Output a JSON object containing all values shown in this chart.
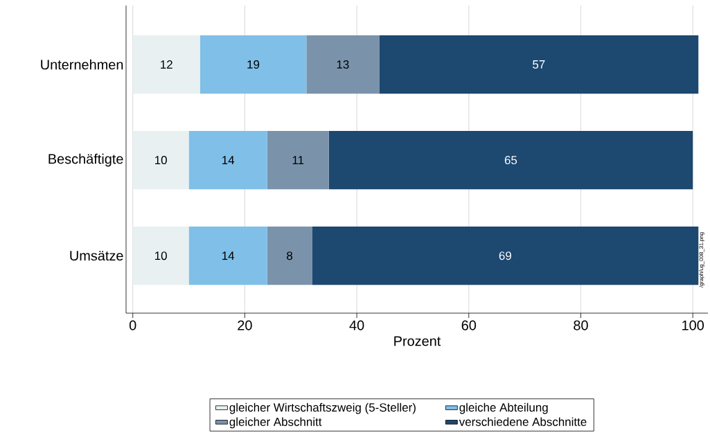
{
  "chart_data": {
    "type": "bar",
    "orientation": "horizontal",
    "stacked": true,
    "categories": [
      "Unternehmen",
      "Beschäftigte",
      "Umsätze"
    ],
    "series": [
      {
        "name": "gleicher Wirtschaftszweig (5-Steller)",
        "color": "#e8f0f2",
        "values": [
          12,
          10,
          10
        ]
      },
      {
        "name": "gleiche Abteilung",
        "color": "#80bfe8",
        "values": [
          19,
          14,
          14
        ]
      },
      {
        "name": "gleicher Abschnitt",
        "color": "#7a93ab",
        "values": [
          13,
          11,
          8
        ]
      },
      {
        "name": "verschiedene Abschnitte",
        "color": "#1d4870",
        "values": [
          57,
          65,
          69
        ]
      }
    ],
    "xlim": [
      -1.2,
      102.7
    ],
    "xticks": [
      0,
      20,
      40,
      60,
      80,
      100
    ],
    "xlabel": "Prozent",
    "data_labels": true,
    "grid": "x",
    "legend": "bottom",
    "annotations": [
      "/graph/ug_008_31.png"
    ]
  }
}
